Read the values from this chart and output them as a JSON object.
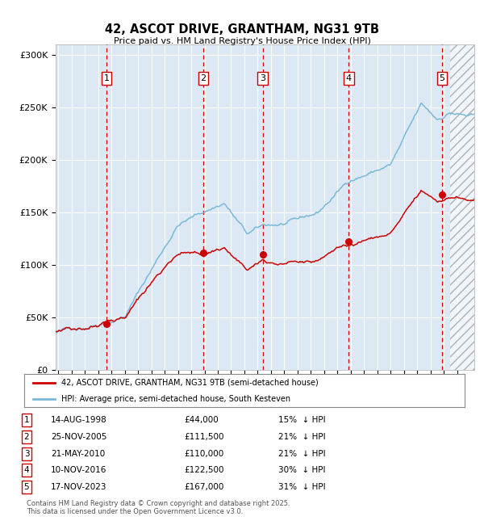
{
  "title": "42, ASCOT DRIVE, GRANTHAM, NG31 9TB",
  "subtitle": "Price paid vs. HM Land Registry's House Price Index (HPI)",
  "bg_color": "#dce9f5",
  "hpi_color": "#7ab8d9",
  "price_color": "#cc0000",
  "vline_color": "#cc0000",
  "yticks": [
    0,
    50000,
    100000,
    150000,
    200000,
    250000,
    300000
  ],
  "ytick_labels": [
    "£0",
    "£50K",
    "£100K",
    "£150K",
    "£200K",
    "£250K",
    "£300K"
  ],
  "sales": [
    {
      "num": 1,
      "date": "14-AUG-1998",
      "year": 1998.62,
      "price": 44000,
      "pct": "15%",
      "dir": "↓"
    },
    {
      "num": 2,
      "date": "25-NOV-2005",
      "year": 2005.9,
      "price": 111500,
      "pct": "21%",
      "dir": "↓"
    },
    {
      "num": 3,
      "date": "21-MAY-2010",
      "year": 2010.38,
      "price": 110000,
      "pct": "21%",
      "dir": "↓"
    },
    {
      "num": 4,
      "date": "10-NOV-2016",
      "year": 2016.86,
      "price": 122500,
      "pct": "30%",
      "dir": "↓"
    },
    {
      "num": 5,
      "date": "17-NOV-2023",
      "year": 2023.87,
      "price": 167000,
      "pct": "31%",
      "dir": "↓"
    }
  ],
  "legend_entries": [
    "42, ASCOT DRIVE, GRANTHAM, NG31 9TB (semi-detached house)",
    "HPI: Average price, semi-detached house, South Kesteven"
  ],
  "footer": "Contains HM Land Registry data © Crown copyright and database right 2025.\nThis data is licensed under the Open Government Licence v3.0.",
  "hatch_region_start": 2024.5,
  "ylim": [
    0,
    310000
  ],
  "xlim": [
    1994.8,
    2026.3
  ]
}
